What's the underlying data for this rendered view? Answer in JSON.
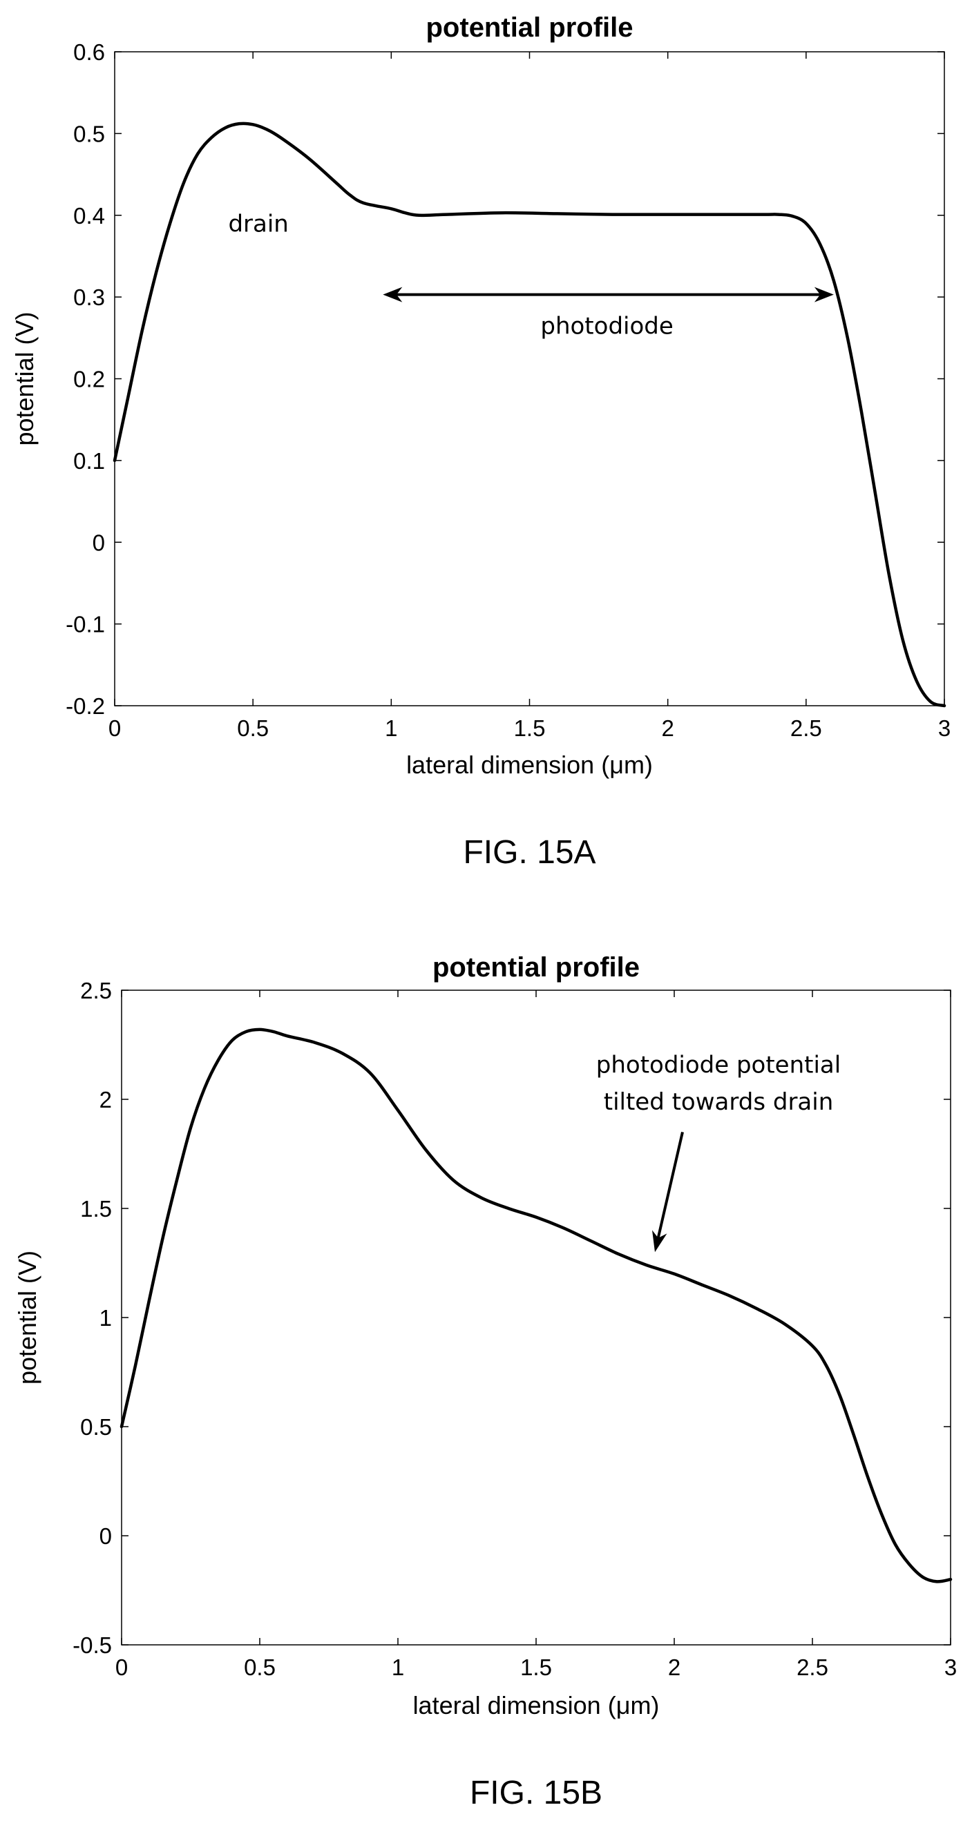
{
  "chart_data": [
    {
      "type": "line",
      "title": "potential profile",
      "xlabel": "lateral dimension (μm)",
      "ylabel": "potential (V)",
      "xlim": [
        0,
        3
      ],
      "ylim": [
        -0.2,
        0.6
      ],
      "xticks": [
        "0",
        "0.5",
        "1",
        "1.5",
        "2",
        "2.5",
        "3"
      ],
      "yticks": [
        "0.6",
        "0.5",
        "0.4",
        "0.3",
        "0.2",
        "0.1",
        "0",
        "-0.1",
        "-0.2"
      ],
      "grid": false,
      "series": [
        {
          "x": [
            0,
            0.05,
            0.1,
            0.15,
            0.2,
            0.25,
            0.3,
            0.35,
            0.4,
            0.45,
            0.5,
            0.55,
            0.6,
            0.7,
            0.8,
            0.85,
            0.9,
            1.0,
            1.05,
            1.1,
            1.2,
            1.4,
            1.6,
            1.8,
            2.0,
            2.2,
            2.35,
            2.4,
            2.45,
            2.5,
            2.55,
            2.6,
            2.65,
            2.7,
            2.75,
            2.8,
            2.85,
            2.9,
            2.95,
            3.0
          ],
          "y": [
            0.1,
            0.18,
            0.26,
            0.33,
            0.39,
            0.44,
            0.475,
            0.495,
            0.507,
            0.512,
            0.511,
            0.505,
            0.495,
            0.47,
            0.44,
            0.425,
            0.415,
            0.408,
            0.403,
            0.4,
            0.401,
            0.403,
            0.402,
            0.401,
            0.401,
            0.401,
            0.401,
            0.401,
            0.399,
            0.39,
            0.365,
            0.32,
            0.25,
            0.16,
            0.06,
            -0.04,
            -0.12,
            -0.17,
            -0.195,
            -0.2
          ]
        }
      ],
      "annotations": [
        {
          "text": "drain",
          "x": 0.52,
          "y": 0.39
        },
        {
          "text": "photodiode",
          "x": 1.78,
          "y": 0.265
        }
      ],
      "double_arrow": {
        "x_start": 0.97,
        "x_end": 2.6,
        "y": 0.303
      },
      "caption": "FIG. 15A"
    },
    {
      "type": "line",
      "title": "potential profile",
      "xlabel": "lateral dimension (μm)",
      "ylabel": "potential (V)",
      "xlim": [
        0,
        3
      ],
      "ylim": [
        -0.5,
        2.5
      ],
      "xticks": [
        "0",
        "0.5",
        "1",
        "1.5",
        "2",
        "2.5",
        "3"
      ],
      "yticks": [
        "2.5",
        "2",
        "1.5",
        "1",
        "0.5",
        "0",
        "-0.5"
      ],
      "grid": false,
      "series": [
        {
          "x": [
            0,
            0.05,
            0.1,
            0.15,
            0.2,
            0.25,
            0.3,
            0.35,
            0.4,
            0.45,
            0.5,
            0.55,
            0.6,
            0.7,
            0.8,
            0.9,
            1.0,
            1.1,
            1.2,
            1.3,
            1.4,
            1.5,
            1.6,
            1.7,
            1.8,
            1.9,
            2.0,
            2.1,
            2.2,
            2.3,
            2.4,
            2.5,
            2.55,
            2.6,
            2.65,
            2.7,
            2.75,
            2.8,
            2.85,
            2.9,
            2.95,
            3.0
          ],
          "y": [
            0.5,
            0.78,
            1.08,
            1.37,
            1.63,
            1.87,
            2.05,
            2.18,
            2.27,
            2.31,
            2.32,
            2.31,
            2.29,
            2.26,
            2.21,
            2.12,
            1.95,
            1.77,
            1.63,
            1.55,
            1.5,
            1.46,
            1.41,
            1.35,
            1.29,
            1.24,
            1.2,
            1.15,
            1.1,
            1.04,
            0.97,
            0.87,
            0.78,
            0.64,
            0.46,
            0.27,
            0.1,
            -0.04,
            -0.13,
            -0.19,
            -0.21,
            -0.2
          ]
        }
      ],
      "annotations": [
        {
          "text": "photodiode potential",
          "x": 2.16,
          "y": 2.16
        },
        {
          "text": "tilted towards drain",
          "x": 2.16,
          "y": 1.99
        }
      ],
      "arrow": {
        "x_start": 2.03,
        "y_start": 1.85,
        "x_end": 1.93,
        "y_end": 1.3
      },
      "caption": "FIG. 15B"
    }
  ]
}
